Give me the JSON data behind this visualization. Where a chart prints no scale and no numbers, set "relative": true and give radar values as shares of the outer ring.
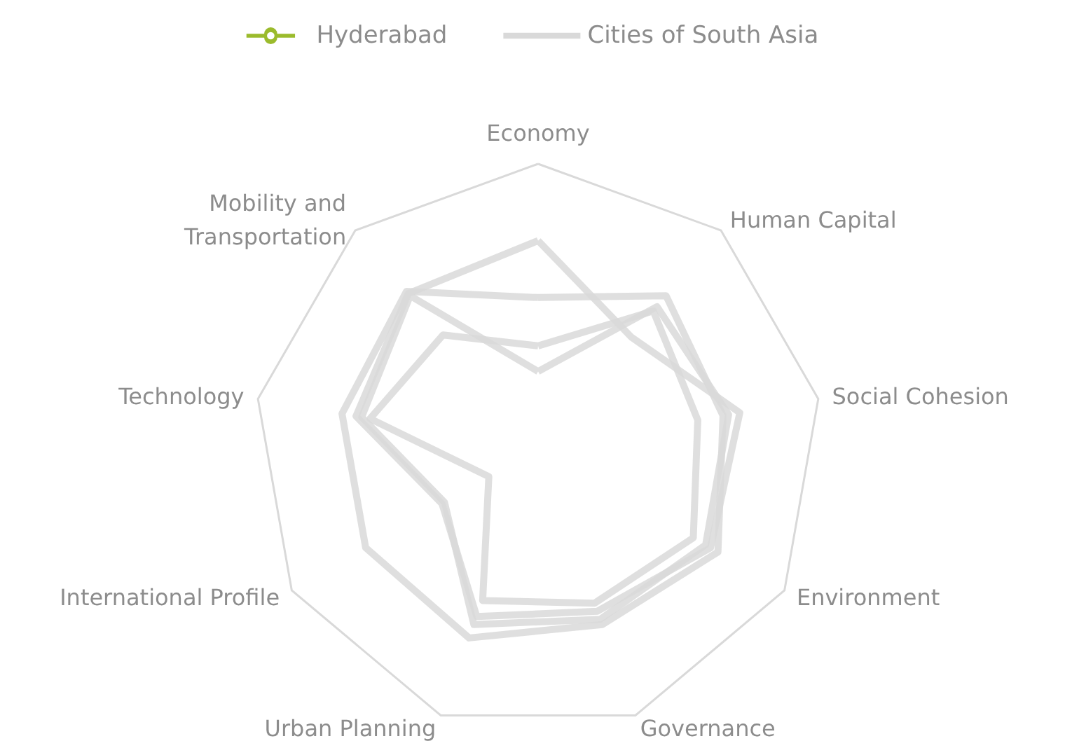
{
  "chart_data": {
    "type": "radar",
    "relative": true,
    "legend": "top",
    "categories": [
      "Economy",
      "Human Capital",
      "Social Cohesion",
      "Environment",
      "Governance",
      "Urban Planning",
      "International Profile",
      "Technology",
      "Mobility and\nTransportation"
    ],
    "series": [
      {
        "name": "Cities of South Asia",
        "color": "#d9d9d9",
        "values": [
          0.73,
          0.51,
          0.72,
          0.7,
          0.61,
          0.63,
          0.39,
          0.65,
          0.71
        ]
      },
      {
        "color": "#d9d9d9",
        "values": [
          0.53,
          0.7,
          0.66,
          0.73,
          0.66,
          0.71,
          0.7,
          0.7,
          0.72
        ]
      },
      {
        "color": "#d9d9d9",
        "values": [
          0.36,
          0.63,
          0.57,
          0.63,
          0.58,
          0.57,
          0.2,
          0.6,
          0.52
        ]
      },
      {
        "color": "#d9d9d9",
        "values": [
          0.27,
          0.65,
          0.68,
          0.68,
          0.64,
          0.66,
          0.38,
          0.63,
          0.7
        ]
      },
      {
        "name": "Hyderabad",
        "color": "#9bbb2c",
        "marker": "circle",
        "values": [
          null,
          null,
          null,
          null,
          null,
          null,
          null,
          null,
          null
        ]
      }
    ]
  }
}
